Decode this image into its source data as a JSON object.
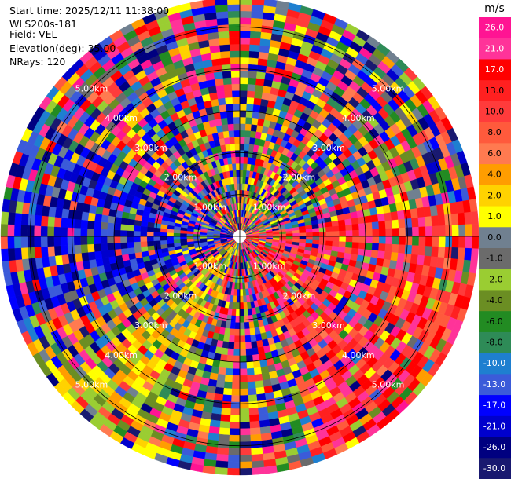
{
  "header": {
    "start_time_label": "Start time:",
    "start_time": "2025/12/11 11:38:00",
    "instrument": "WLS200s-181",
    "field_label": "Field:",
    "field": "VEL",
    "elevation_label": "Elevation(deg):",
    "elevation": "35.00",
    "nrays_label": "NRays:",
    "nrays": "120"
  },
  "chart_data": {
    "type": "heatmap",
    "projection": "polar-ppi",
    "field": "VEL",
    "unit": "m/s",
    "n_rays": 120,
    "range_rings_km": [
      1,
      2,
      3,
      4,
      5
    ],
    "ring_labels": [
      "1.00km",
      "2.00km",
      "3.00km",
      "4.00km",
      "5.00km"
    ],
    "max_range_km": 5.7,
    "colorbar": {
      "label": "m/s",
      "vmin": -30,
      "vmax": 30,
      "ticks": [
        "26.0",
        "21.0",
        "17.0",
        "13.0",
        "10.0",
        "8.0",
        "6.0",
        "4.0",
        "2.0",
        "1.0",
        "0.0",
        "-1.0",
        "-2.0",
        "-4.0",
        "-6.0",
        "-8.0",
        "-10.0",
        "-13.0",
        "-17.0",
        "-21.0",
        "-26.0",
        "-30.0"
      ],
      "colors": [
        "#ff1493",
        "#ff3399",
        "#ff0000",
        "#ff2020",
        "#ff3b3b",
        "#ff5a3c",
        "#ff7a50",
        "#ff9d00",
        "#ffd200",
        "#ffff00",
        "#708090",
        "#6b6b6b",
        "#9acd32",
        "#6b8e23",
        "#228b22",
        "#2e8b57",
        "#1e7fd0",
        "#3b5bd9",
        "#0000ff",
        "#0000cd",
        "#000080",
        "#191970"
      ]
    }
  }
}
